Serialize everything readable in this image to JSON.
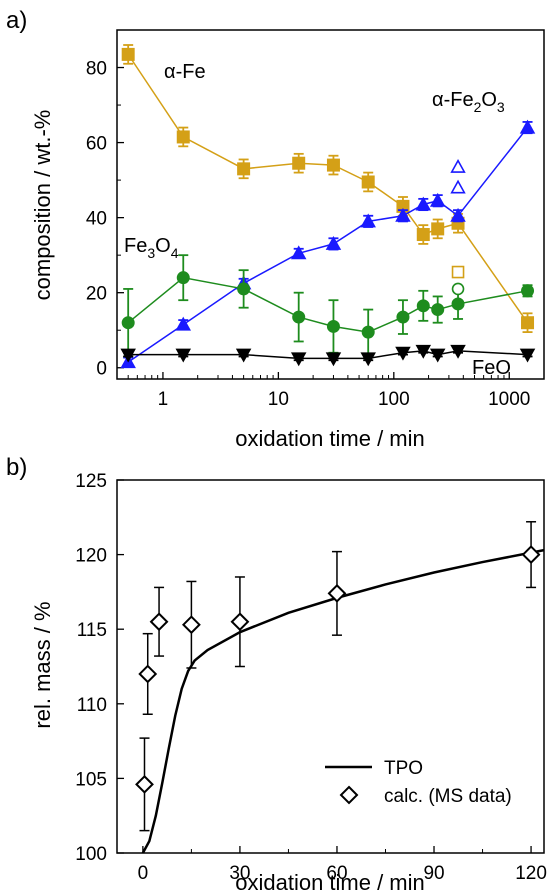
{
  "figure": {
    "panel_a_label": "a)",
    "panel_b_label": "b)"
  },
  "chart_data": [
    {
      "type": "line",
      "xscale": "log",
      "xlabel": "oxidation time / min",
      "ylabel": "composition / wt.-%",
      "xlim": [
        0.4,
        2000
      ],
      "ylim": [
        -3,
        90
      ],
      "xticks": [
        1,
        10,
        100,
        1000
      ],
      "xtick_labels": [
        "1",
        "10",
        "100",
        "1000"
      ],
      "yticks": [
        0,
        20,
        40,
        60,
        80
      ],
      "ytick_labels": [
        "0",
        "20",
        "40",
        "60",
        "80"
      ],
      "grid": false,
      "series": [
        {
          "name": "α-Fe",
          "color": "#d4a017",
          "marker": "square",
          "x": [
            0.5,
            1.5,
            5,
            15,
            30,
            60,
            120,
            180,
            240,
            360,
            1440
          ],
          "y": [
            83.5,
            61.5,
            53,
            54.5,
            54,
            49.5,
            43,
            35.5,
            37,
            38.5,
            12
          ],
          "err": [
            2.5,
            2.5,
            2.5,
            2.5,
            2.5,
            2.5,
            2.5,
            2.5,
            2.5,
            2.5,
            2.5
          ]
        },
        {
          "name": "α-Fe2O3",
          "color": "#1a1aff",
          "marker": "triangle-up",
          "x": [
            0.5,
            1.5,
            5,
            15,
            30,
            60,
            120,
            180,
            240,
            360,
            1440
          ],
          "y": [
            1.5,
            11.5,
            22.5,
            30.5,
            33,
            39,
            40.5,
            43.5,
            44.5,
            40.5,
            64
          ],
          "err": [
            1.2,
            1.2,
            1.2,
            1.2,
            1.5,
            1.5,
            1.5,
            1.5,
            1.5,
            1.5,
            1.5
          ]
        },
        {
          "name": "Fe3O4",
          "color": "#1e8c1e",
          "marker": "circle",
          "x": [
            0.5,
            1.5,
            5,
            15,
            30,
            60,
            120,
            180,
            240,
            360,
            1440
          ],
          "y": [
            12,
            24,
            21,
            13.5,
            11,
            9.5,
            13.5,
            16.5,
            15.5,
            17,
            20.5
          ],
          "err": [
            9,
            6,
            5,
            6.5,
            7,
            6,
            4.5,
            4,
            3.5,
            4,
            1.5
          ]
        },
        {
          "name": "FeO",
          "color": "#000000",
          "marker": "triangle-down",
          "x": [
            0.5,
            1.5,
            5,
            15,
            30,
            60,
            120,
            180,
            240,
            360,
            1440
          ],
          "y": [
            3.5,
            3.5,
            3.5,
            2.5,
            2.5,
            2.5,
            4,
            4.5,
            3.5,
            4.5,
            3.5
          ],
          "err": [
            0.5,
            0.5,
            0.5,
            0.5,
            0.5,
            0.5,
            0.5,
            0.5,
            0.5,
            0.5,
            0.5
          ]
        }
      ],
      "open_points": [
        {
          "series": "α-Fe2O3",
          "x": [
            360,
            360
          ],
          "y": [
            53.5,
            48
          ]
        },
        {
          "series": "α-Fe",
          "x": [
            360
          ],
          "y": [
            25.5
          ]
        },
        {
          "series": "Fe3O4",
          "x": [
            360
          ],
          "y": [
            21
          ]
        }
      ],
      "annotations": [
        {
          "text": "α-Fe",
          "kind": "plain"
        },
        {
          "text": "α-Fe",
          "base": "α-Fe",
          "sub": "2",
          "mid": "O",
          "sub2": "3"
        },
        {
          "base": "Fe",
          "sub": "3",
          "mid": "O",
          "sub2": "4"
        },
        {
          "text": "FeO",
          "kind": "plain"
        }
      ]
    },
    {
      "type": "line",
      "xlabel": "oxidation time / min",
      "ylabel": "rel. mass / %",
      "xlim": [
        -8,
        124
      ],
      "ylim": [
        100,
        125
      ],
      "xticks": [
        0,
        30,
        60,
        90,
        120
      ],
      "xtick_labels": [
        "0",
        "30",
        "60",
        "90",
        "120"
      ],
      "yticks": [
        100,
        105,
        110,
        115,
        120,
        125
      ],
      "ytick_labels": [
        "100",
        "105",
        "110",
        "115",
        "120",
        "125"
      ],
      "grid": false,
      "legend": "bottom-right",
      "series": [
        {
          "name": "TPO",
          "style": "line",
          "color": "#000000",
          "x": [
            0,
            2,
            4,
            6,
            8,
            10,
            12,
            14,
            16,
            20,
            30,
            45,
            60,
            75,
            90,
            105,
            124
          ],
          "y": [
            100,
            100.8,
            102.5,
            104.7,
            107,
            109.2,
            111,
            112.2,
            112.9,
            113.6,
            114.8,
            116.1,
            117.1,
            118,
            118.8,
            119.5,
            120.3
          ]
        },
        {
          "name": "calc. (MS data)",
          "style": "marker",
          "marker": "diamond-open",
          "color": "#000000",
          "x": [
            0.5,
            1.5,
            5,
            15,
            30,
            60,
            120
          ],
          "y": [
            104.6,
            112,
            115.5,
            115.3,
            115.5,
            117.4,
            120
          ],
          "err": [
            3.1,
            2.7,
            2.3,
            2.9,
            3.0,
            2.8,
            2.2
          ]
        }
      ]
    }
  ]
}
